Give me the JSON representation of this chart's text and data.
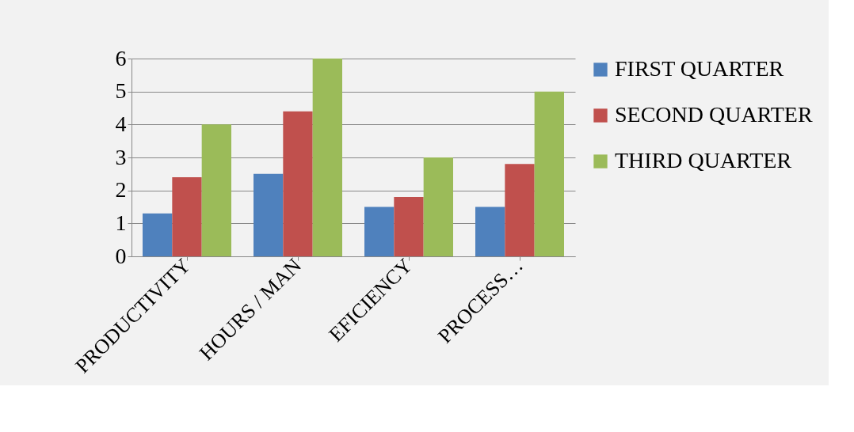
{
  "chart_data": {
    "type": "bar",
    "categories": [
      "PRODUCTIVITY",
      "HOURS / MAN",
      "EFICIENCY",
      "PROCESS…"
    ],
    "series": [
      {
        "name": "FIRST QUARTER",
        "color": "#4f81bd",
        "values": [
          1.3,
          2.5,
          1.5,
          1.5
        ]
      },
      {
        "name": "SECOND QUARTER",
        "color": "#c0504d",
        "values": [
          2.4,
          4.4,
          1.8,
          2.8
        ]
      },
      {
        "name": "THIRD QUARTER",
        "color": "#9bbb59",
        "values": [
          4,
          6,
          3,
          5
        ]
      }
    ],
    "ylim": [
      0,
      6
    ],
    "yticks": [
      0,
      1,
      2,
      3,
      4,
      5,
      6
    ],
    "grid": "y",
    "legend": "right"
  }
}
